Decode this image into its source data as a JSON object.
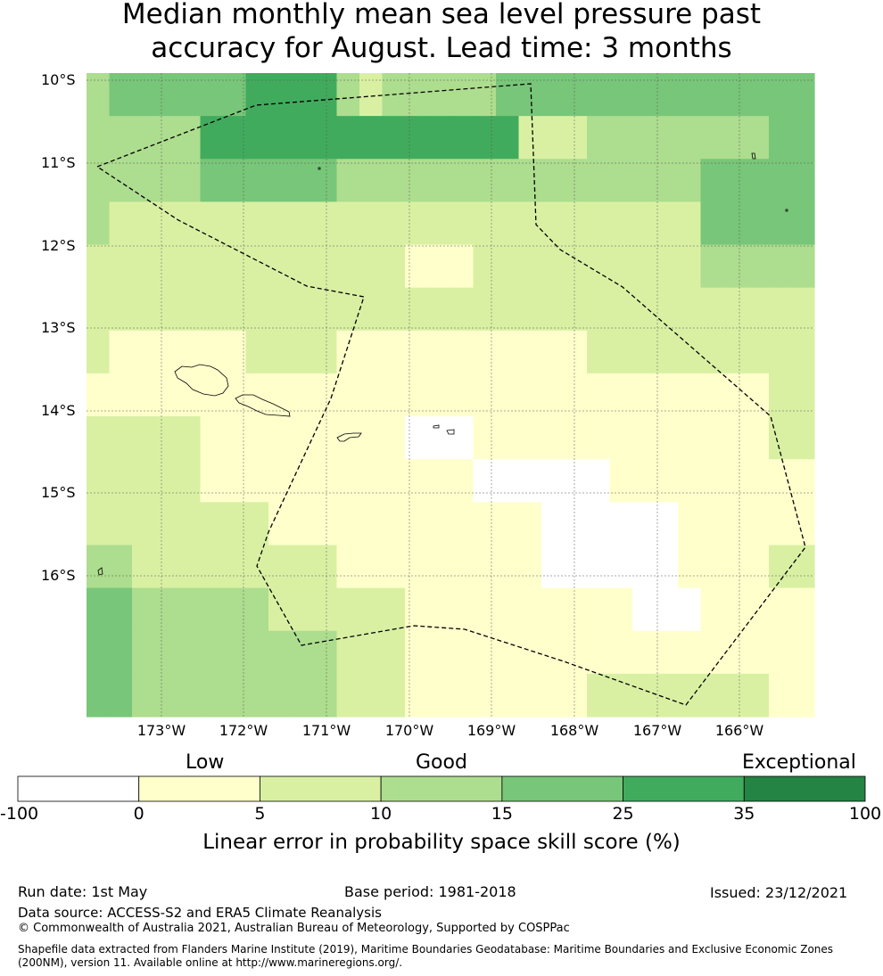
{
  "title_line1": "Median monthly mean sea level pressure past",
  "title_line2": "accuracy for August. Lead time: 3 months",
  "map": {
    "lat_labels": [
      "10°S",
      "11°S",
      "12°S",
      "13°S",
      "14°S",
      "15°S",
      "16°S"
    ],
    "lon_labels": [
      "173°W",
      "172°W",
      "171°W",
      "170°W",
      "169°W",
      "168°W",
      "167°W",
      "166°W"
    ],
    "grid_categories": [
      [
        3,
        4,
        4,
        4,
        4,
        4,
        4,
        5,
        5,
        5,
        5,
        3,
        2,
        3,
        3,
        3,
        3,
        3,
        4,
        4,
        4,
        4,
        4,
        4,
        4,
        4,
        4,
        4,
        4,
        4,
        4,
        4
      ],
      [
        3,
        3,
        3,
        3,
        3,
        5,
        5,
        5,
        5,
        5,
        5,
        5,
        5,
        5,
        5,
        5,
        5,
        5,
        5,
        2,
        2,
        2,
        3,
        3,
        3,
        3,
        3,
        3,
        3,
        3,
        4,
        4
      ],
      [
        3,
        3,
        3,
        3,
        3,
        4,
        4,
        4,
        4,
        4,
        4,
        3,
        3,
        3,
        3,
        3,
        3,
        3,
        3,
        3,
        3,
        3,
        3,
        3,
        3,
        3,
        3,
        4,
        4,
        4,
        4,
        4
      ],
      [
        3,
        2,
        2,
        2,
        2,
        2,
        2,
        2,
        2,
        2,
        2,
        2,
        2,
        2,
        2,
        2,
        2,
        2,
        2,
        2,
        2,
        2,
        2,
        2,
        2,
        2,
        2,
        4,
        4,
        4,
        4,
        4
      ],
      [
        2,
        2,
        2,
        2,
        2,
        2,
        2,
        2,
        2,
        2,
        2,
        2,
        2,
        2,
        1,
        1,
        1,
        2,
        2,
        2,
        2,
        2,
        2,
        2,
        2,
        2,
        2,
        3,
        3,
        3,
        3,
        3
      ],
      [
        2,
        2,
        2,
        2,
        2,
        2,
        2,
        2,
        2,
        2,
        2,
        2,
        2,
        2,
        2,
        2,
        2,
        2,
        2,
        2,
        2,
        2,
        2,
        2,
        2,
        2,
        2,
        2,
        2,
        2,
        2,
        2
      ],
      [
        2,
        1,
        1,
        1,
        1,
        1,
        1,
        2,
        2,
        2,
        2,
        1,
        1,
        1,
        1,
        1,
        1,
        1,
        1,
        1,
        1,
        1,
        2,
        2,
        2,
        2,
        2,
        2,
        2,
        2,
        2,
        2
      ],
      [
        1,
        1,
        1,
        1,
        1,
        1,
        1,
        1,
        1,
        1,
        1,
        1,
        1,
        1,
        1,
        1,
        1,
        1,
        1,
        1,
        1,
        1,
        1,
        1,
        1,
        1,
        1,
        1,
        1,
        1,
        2,
        2
      ],
      [
        2,
        2,
        2,
        2,
        2,
        1,
        1,
        1,
        1,
        1,
        1,
        1,
        1,
        1,
        0,
        0,
        0,
        1,
        1,
        1,
        1,
        1,
        1,
        1,
        1,
        1,
        1,
        1,
        1,
        1,
        2,
        2
      ],
      [
        2,
        2,
        2,
        2,
        2,
        1,
        1,
        1,
        1,
        1,
        1,
        1,
        1,
        1,
        1,
        1,
        1,
        0,
        0,
        0,
        0,
        0,
        0,
        1,
        1,
        1,
        1,
        1,
        1,
        1,
        1,
        1
      ],
      [
        2,
        2,
        2,
        2,
        2,
        2,
        2,
        2,
        1,
        1,
        1,
        1,
        1,
        1,
        1,
        1,
        1,
        1,
        1,
        1,
        0,
        0,
        0,
        0,
        0,
        0,
        1,
        1,
        1,
        1,
        1,
        1
      ],
      [
        3,
        3,
        2,
        2,
        2,
        2,
        2,
        2,
        2,
        2,
        2,
        1,
        1,
        1,
        1,
        1,
        1,
        1,
        1,
        1,
        0,
        0,
        0,
        0,
        0,
        0,
        1,
        1,
        1,
        1,
        2,
        2
      ],
      [
        4,
        4,
        3,
        3,
        3,
        3,
        3,
        3,
        2,
        2,
        2,
        2,
        2,
        2,
        1,
        1,
        1,
        1,
        1,
        1,
        1,
        1,
        1,
        1,
        0,
        0,
        0,
        1,
        1,
        1,
        1,
        1
      ],
      [
        4,
        4,
        3,
        3,
        3,
        3,
        3,
        3,
        3,
        3,
        3,
        2,
        2,
        2,
        1,
        1,
        1,
        1,
        1,
        1,
        1,
        1,
        1,
        1,
        1,
        1,
        1,
        1,
        1,
        1,
        1,
        1
      ],
      [
        4,
        4,
        3,
        3,
        3,
        3,
        3,
        3,
        3,
        3,
        3,
        2,
        2,
        2,
        1,
        1,
        1,
        1,
        1,
        1,
        1,
        1,
        2,
        2,
        2,
        2,
        2,
        2,
        2,
        2,
        1,
        1
      ]
    ]
  },
  "colorbar": {
    "categories": [
      "Low",
      "Good",
      "Exceptional"
    ],
    "ticks": [
      "-100",
      "0",
      "5",
      "10",
      "15",
      "25",
      "35",
      "100"
    ],
    "colors": [
      "#ffffff",
      "#ffffcc",
      "#d9f0a3",
      "#addd8e",
      "#78c679",
      "#41ab5d",
      "#238443"
    ],
    "label": "Linear error in probability space skill score (%)"
  },
  "footer": {
    "run_date": "Run date: 1st May",
    "base_period": "Base period: 1981-2018",
    "issued": "Issued: 23/12/2021",
    "data_source": "Data source: ACCESS-S2 and ERA5 Climate Reanalysis",
    "copyright": "© Commonwealth of Australia 2021, Australian Bureau of Meteorology, Supported by COSPPac",
    "shapefile_line1": "Shapefile data extracted from Flanders Marine Institute (2019), Maritime Boundaries Geodatabase: Maritime Boundaries and Exclusive Economic Zones",
    "shapefile_line2": "(200NM), version 11. Available online at http://www.marineregions.org/."
  }
}
